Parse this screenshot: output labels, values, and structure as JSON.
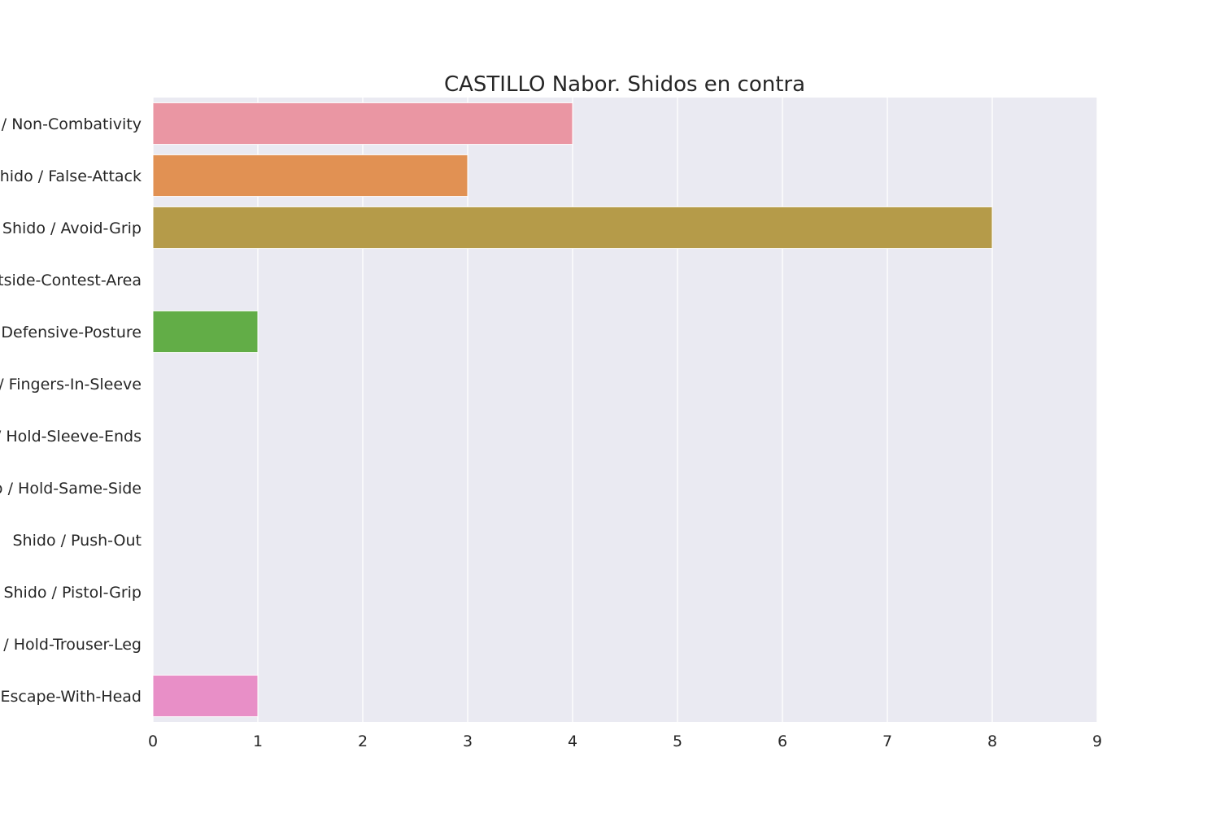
{
  "chart_data": {
    "type": "bar",
    "orientation": "horizontal",
    "title": "CASTILLO Nabor. Shidos en contra",
    "xlabel": "",
    "ylabel": "",
    "categories": [
      "Shido / Non-Combativity",
      "Shido / False-Attack",
      "Shido / Avoid-Grip",
      "Shido / Outside-Contest-Area",
      "Shido / Defensive-Posture",
      "Shido / Fingers-In-Sleeve",
      "Shido / Hold-Sleeve-Ends",
      "Shido / Hold-Same-Side",
      "Shido / Push-Out",
      "Shido / Pistol-Grip",
      "Shido / Hold-Trouser-Leg",
      "Shido / Escape-With-Head"
    ],
    "values": [
      4,
      3,
      8,
      0,
      1,
      0,
      0,
      0,
      0,
      0,
      0,
      1
    ],
    "colors": [
      "#ea96a3",
      "#e19153",
      "#b59b49",
      "#8fa548",
      "#62ad47",
      "#4db28d",
      "#50b0a7",
      "#52adbc",
      "#57a8d6",
      "#9b99e2",
      "#d48de1",
      "#e88fc7"
    ],
    "xlim": [
      0,
      9
    ],
    "xticks": [
      0,
      1,
      2,
      3,
      4,
      5,
      6,
      7,
      8,
      9
    ],
    "grid": true,
    "background": "#eaeaf2",
    "grid_color": "#ffffff",
    "legend": "none"
  }
}
